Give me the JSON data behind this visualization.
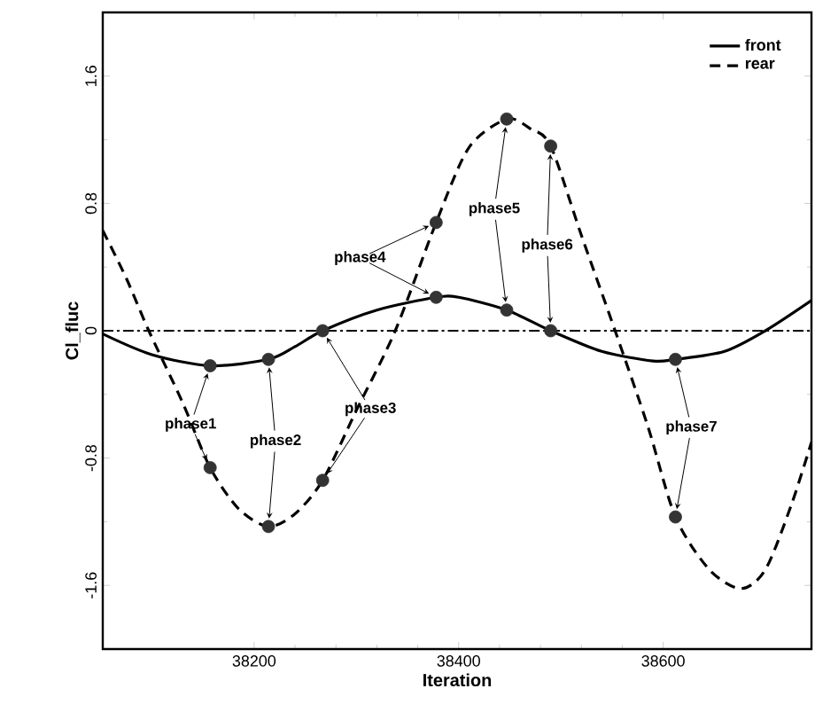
{
  "chart_data": {
    "type": "line",
    "xlabel": "Iteration",
    "ylabel": "Cl_fluc",
    "xlim": [
      38052,
      38745
    ],
    "ylim": [
      -2,
      2
    ],
    "xticks": [
      38200,
      38400,
      38600
    ],
    "yticks": [
      -1.6,
      -0.8,
      0,
      0.8,
      1.6
    ],
    "legend": "top right",
    "grid": false,
    "series": [
      {
        "name": "front",
        "color": "#000000",
        "line_style": "solid",
        "marker": "none",
        "x": [
          38052,
          38100,
          38157,
          38214,
          38240,
          38267,
          38320,
          38378,
          38400,
          38447,
          38490,
          38540,
          38590,
          38612,
          38660,
          38700,
          38745
        ],
        "values": [
          -0.02,
          -0.15,
          -0.22,
          -0.18,
          -0.1,
          0,
          0.13,
          0.21,
          0.21,
          0.13,
          0,
          -0.13,
          -0.19,
          -0.18,
          -0.13,
          0,
          0.19
        ]
      },
      {
        "name": "rear",
        "color": "#000000",
        "line_style": "dashed",
        "marker": "none",
        "x": [
          38052,
          38075,
          38097,
          38130,
          38157,
          38185,
          38214,
          38240,
          38267,
          38300,
          38338,
          38378,
          38410,
          38447,
          38470,
          38490,
          38520,
          38553,
          38585,
          38612,
          38645,
          38676,
          38700,
          38725,
          38745
        ],
        "values": [
          0.63,
          0.33,
          0,
          -0.45,
          -0.86,
          -1.12,
          -1.23,
          -1.15,
          -0.94,
          -0.5,
          0,
          0.68,
          1.15,
          1.33,
          1.27,
          1.16,
          0.6,
          0,
          -0.6,
          -1.17,
          -1.5,
          -1.62,
          -1.5,
          -1.1,
          -0.7
        ]
      },
      {
        "type": "scatter",
        "color": "#333333",
        "marker": "circle",
        "x": [
          38157,
          38214,
          38267,
          38378,
          38447,
          38490,
          38612
        ],
        "values": [
          -0.22,
          -0.18,
          0,
          0.21,
          0.13,
          0,
          -0.18
        ]
      },
      {
        "type": "scatter",
        "color": "#333333",
        "marker": "circle",
        "x": [
          38157,
          38214,
          38267,
          38378,
          38447,
          38490,
          38612
        ],
        "values": [
          -0.86,
          -1.23,
          -0.94,
          0.68,
          1.33,
          1.16,
          -1.17
        ]
      }
    ],
    "ref_lines": [
      {
        "axis": "y",
        "value": 0,
        "line_style": "dashdot",
        "color": "#000000"
      }
    ],
    "annotations": [
      {
        "text": "phase1",
        "x": 38157,
        "y": -0.22
      },
      {
        "text": "phase2",
        "x": 38214,
        "y": -0.18
      },
      {
        "text": "phase3",
        "x": 38267,
        "y": 0
      },
      {
        "text": "phase4",
        "x": 38378,
        "y": 0.21
      },
      {
        "text": "phase5",
        "x": 38447,
        "y": 0.13
      },
      {
        "text": "phase6",
        "x": 38490,
        "y": 0
      },
      {
        "text": "phase7",
        "x": 38612,
        "y": -0.18
      }
    ]
  }
}
